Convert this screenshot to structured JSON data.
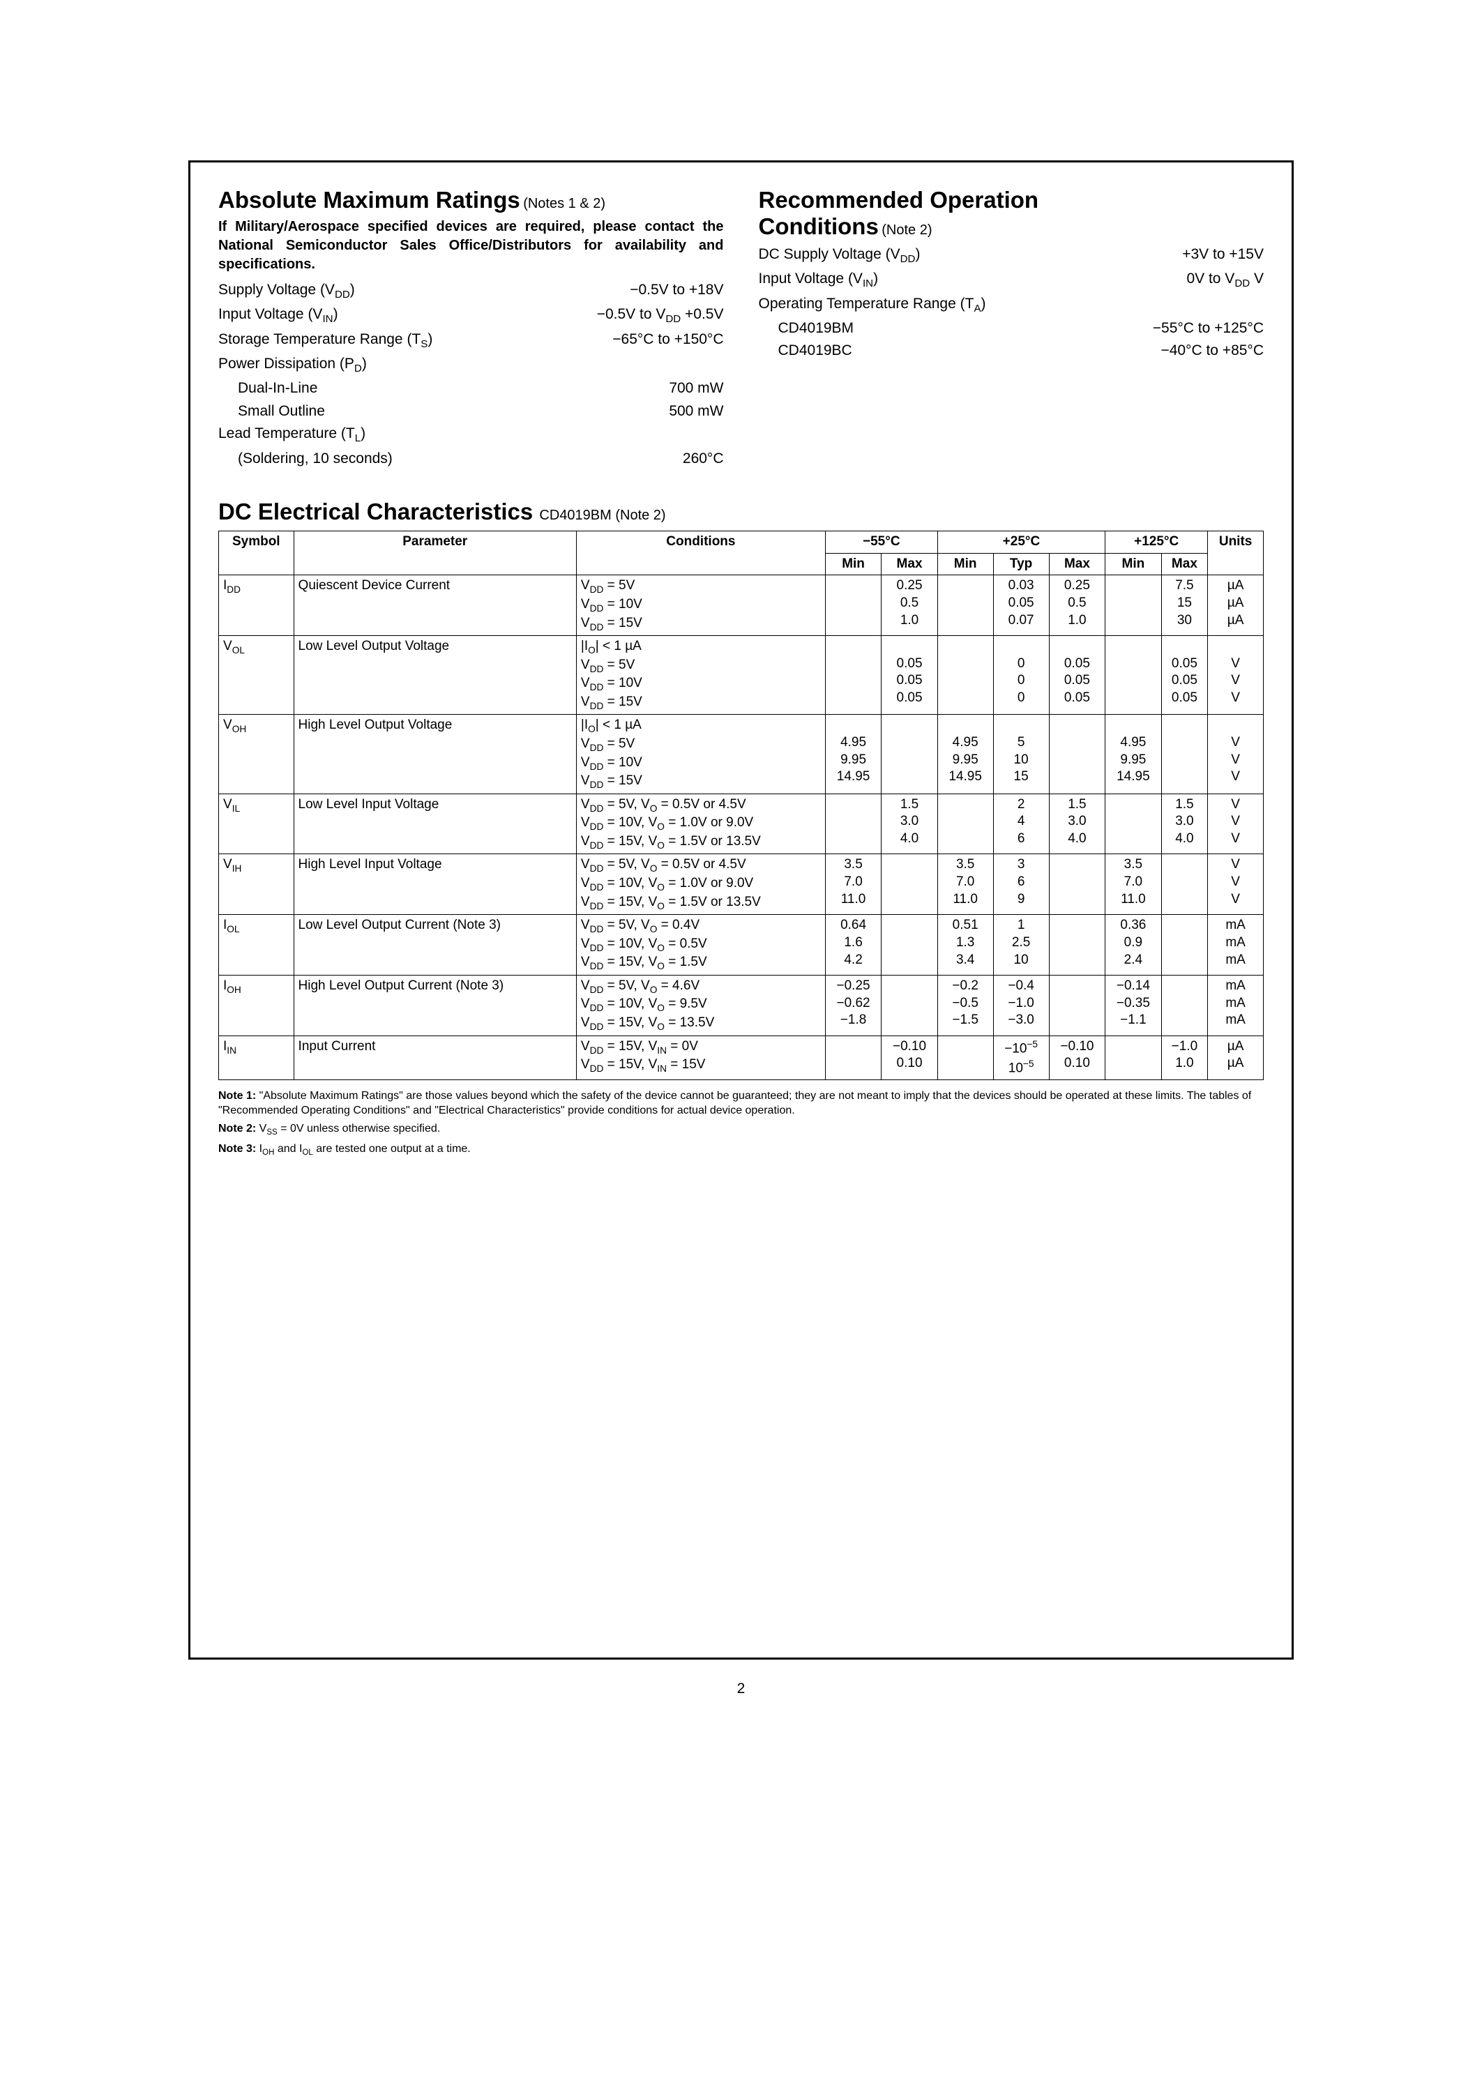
{
  "page_number": "2",
  "abs_max": {
    "heading": "Absolute Maximum Ratings",
    "notes_ref": "(Notes 1 & 2)",
    "military_note": "If Military/Aerospace specified devices are required, please contact the National Semiconductor Sales Office/Distributors for availability and specifications.",
    "rows": [
      {
        "label_html": "Supply Voltage (V<sub>DD</sub>)",
        "value_html": "−0.5V to +18V",
        "sub": false
      },
      {
        "label_html": "Input Voltage (V<sub>IN</sub>)",
        "value_html": "−0.5V to V<sub>DD</sub> +0.5V",
        "sub": false
      },
      {
        "label_html": "Storage Temperature Range (T<sub>S</sub>)",
        "value_html": "−65°C to +150°C",
        "sub": false
      },
      {
        "label_html": "Power Dissipation (P<sub>D</sub>)",
        "value_html": "",
        "sub": false
      },
      {
        "label_html": "Dual-In-Line",
        "value_html": "700 mW",
        "sub": true
      },
      {
        "label_html": "Small Outline",
        "value_html": "500 mW",
        "sub": true
      },
      {
        "label_html": "Lead Temperature (T<sub>L</sub>)",
        "value_html": "",
        "sub": false
      },
      {
        "label_html": "(Soldering, 10 seconds)",
        "value_html": "260°C",
        "sub": true
      }
    ]
  },
  "rec_op": {
    "heading1": "Recommended Operation",
    "heading2": "Conditions",
    "notes_ref": "(Note 2)",
    "rows": [
      {
        "label_html": "DC Supply Voltage (V<sub>DD</sub>)",
        "value_html": "+3V to +15V",
        "sub": false
      },
      {
        "label_html": "Input Voltage (V<sub>IN</sub>)",
        "value_html": "0V to V<sub>DD</sub> V",
        "sub": false
      },
      {
        "label_html": "Operating Temperature Range (T<sub>A</sub>)",
        "value_html": "",
        "sub": false
      },
      {
        "label_html": "CD4019BM",
        "value_html": "−55°C to +125°C",
        "sub": true
      },
      {
        "label_html": "CD4019BC",
        "value_html": "−40°C to +85°C",
        "sub": true
      }
    ]
  },
  "dc": {
    "heading": "DC Electrical Characteristics",
    "sub_html": "CD4019BM (Note 2)",
    "col_headers": {
      "symbol": "Symbol",
      "parameter": "Parameter",
      "conditions": "Conditions",
      "t_neg55": "−55°C",
      "t_25": "+25°C",
      "t_125": "+125°C",
      "min": "Min",
      "typ": "Typ",
      "max": "Max",
      "units": "Units"
    },
    "rows": [
      {
        "symbol_html": "I<sub>DD</sub>",
        "parameter": "Quiescent Device Current",
        "conditions_html": "V<sub>DD</sub> = 5V<br>V<sub>DD</sub> = 10V<br>V<sub>DD</sub> = 15V",
        "n55_min": "",
        "n55_max": "0.25<br>0.5<br>1.0",
        "p25_min": "",
        "p25_typ": "0.03<br>0.05<br>0.07",
        "p25_max": "0.25<br>0.5<br>1.0",
        "p125_min": "",
        "p125_max": "7.5<br>15<br>30",
        "units_html": "µA<br>µA<br>µA"
      },
      {
        "symbol_html": "V<sub>OL</sub>",
        "parameter": "Low Level Output Voltage",
        "conditions_html": "|I<sub>O</sub>| &lt; 1 µA<br>V<sub>DD</sub> = 5V<br>V<sub>DD</sub> = 10V<br>V<sub>DD</sub> = 15V",
        "n55_min": "",
        "n55_max": "<br>0.05<br>0.05<br>0.05",
        "p25_min": "",
        "p25_typ": "<br>0<br>0<br>0",
        "p25_max": "<br>0.05<br>0.05<br>0.05",
        "p125_min": "",
        "p125_max": "<br>0.05<br>0.05<br>0.05",
        "units_html": "<br>V<br>V<br>V"
      },
      {
        "symbol_html": "V<sub>OH</sub>",
        "parameter": "High Level Output Voltage",
        "conditions_html": "|I<sub>O</sub>| &lt; 1 µA<br>V<sub>DD</sub> = 5V<br>V<sub>DD</sub> = 10V<br>V<sub>DD</sub> = 15V",
        "n55_min": "<br>4.95<br>9.95<br>14.95",
        "n55_max": "",
        "p25_min": "<br>4.95<br>9.95<br>14.95",
        "p25_typ": "<br>5<br>10<br>15",
        "p25_max": "",
        "p125_min": "<br>4.95<br>9.95<br>14.95",
        "p125_max": "",
        "units_html": "<br>V<br>V<br>V"
      },
      {
        "symbol_html": "V<sub>IL</sub>",
        "parameter": "Low Level Input Voltage",
        "conditions_html": "V<sub>DD</sub> = 5V, V<sub>O</sub> = 0.5V or 4.5V<br>V<sub>DD</sub> = 10V, V<sub>O</sub> = 1.0V or 9.0V<br>V<sub>DD</sub> = 15V, V<sub>O</sub> = 1.5V or 13.5V",
        "n55_min": "",
        "n55_max": "1.5<br>3.0<br>4.0",
        "p25_min": "",
        "p25_typ": "2<br>4<br>6",
        "p25_max": "1.5<br>3.0<br>4.0",
        "p125_min": "",
        "p125_max": "1.5<br>3.0<br>4.0",
        "units_html": "V<br>V<br>V"
      },
      {
        "symbol_html": "V<sub>IH</sub>",
        "parameter": "High Level Input Voltage",
        "conditions_html": "V<sub>DD</sub> = 5V, V<sub>O</sub> = 0.5V or 4.5V<br>V<sub>DD</sub> = 10V, V<sub>O</sub> = 1.0V or 9.0V<br>V<sub>DD</sub> = 15V, V<sub>O</sub> = 1.5V or 13.5V",
        "n55_min": "3.5<br>7.0<br>11.0",
        "n55_max": "",
        "p25_min": "3.5<br>7.0<br>11.0",
        "p25_typ": "3<br>6<br>9",
        "p25_max": "",
        "p125_min": "3.5<br>7.0<br>11.0",
        "p125_max": "",
        "units_html": "V<br>V<br>V"
      },
      {
        "symbol_html": "I<sub>OL</sub>",
        "parameter": "Low Level Output Current (Note 3)",
        "conditions_html": "V<sub>DD</sub> = 5V, V<sub>O</sub> = 0.4V<br>V<sub>DD</sub> = 10V, V<sub>O</sub> = 0.5V<br>V<sub>DD</sub> = 15V, V<sub>O</sub> = 1.5V",
        "n55_min": "0.64<br>1.6<br>4.2",
        "n55_max": "",
        "p25_min": "0.51<br>1.3<br>3.4",
        "p25_typ": "1<br>2.5<br>10",
        "p25_max": "",
        "p125_min": "0.36<br>0.9<br>2.4",
        "p125_max": "",
        "units_html": "mA<br>mA<br>mA"
      },
      {
        "symbol_html": "I<sub>OH</sub>",
        "parameter": "High Level Output Current (Note 3)",
        "conditions_html": "V<sub>DD</sub> = 5V, V<sub>O</sub> = 4.6V<br>V<sub>DD</sub> = 10V, V<sub>O</sub> = 9.5V<br>V<sub>DD</sub> = 15V, V<sub>O</sub> = 13.5V",
        "n55_min": "−0.25<br>−0.62<br>−1.8",
        "n55_max": "",
        "p25_min": "−0.2<br>−0.5<br>−1.5",
        "p25_typ": "−0.4<br>−1.0<br>−3.0",
        "p25_max": "",
        "p125_min": "−0.14<br>−0.35<br>−1.1",
        "p125_max": "",
        "units_html": "mA<br>mA<br>mA"
      },
      {
        "symbol_html": "I<sub>IN</sub>",
        "parameter": "Input Current",
        "conditions_html": "V<sub>DD</sub> = 15V, V<sub>IN</sub> = 0V<br>V<sub>DD</sub> = 15V, V<sub>IN</sub> = 15V",
        "n55_min": "",
        "n55_max": "−0.10<br>0.10",
        "p25_min": "",
        "p25_typ": "−10<sup>−5</sup><br>10<sup>−5</sup>",
        "p25_max": "−0.10<br>0.10",
        "p125_min": "",
        "p125_max": "−1.0<br>1.0",
        "units_html": "µA<br>µA"
      }
    ]
  },
  "notes": {
    "n1_html": "<b>Note 1:</b> \"Absolute Maximum Ratings\" are those values beyond which the safety of the device cannot be guaranteed; they are not meant to imply that the devices should be operated at these limits. The tables of \"Recommended Operating Conditions\" and \"Electrical Characteristics\" provide conditions for actual device operation.",
    "n2_html": "<b>Note 2:</b> V<sub>SS</sub> = 0V unless otherwise specified.",
    "n3_html": "<b>Note 3:</b> I<sub>OH</sub> and I<sub>OL</sub> are tested one output at a time."
  }
}
